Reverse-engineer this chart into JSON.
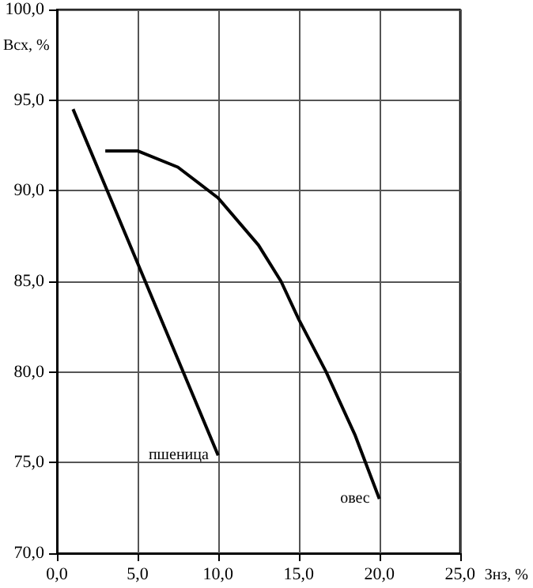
{
  "chart_data": {
    "type": "line",
    "xlabel": "Знз, %",
    "ylabel": "Всх, %",
    "xlim": [
      0,
      25
    ],
    "xticks": [
      {
        "value": 0,
        "label": "0,0"
      },
      {
        "value": 5,
        "label": "5,0"
      },
      {
        "value": 10,
        "label": "10,0"
      },
      {
        "value": 15,
        "label": "15,0"
      },
      {
        "value": 20,
        "label": "20,0"
      },
      {
        "value": 25,
        "label": "25,0"
      }
    ],
    "ylim": [
      70,
      100
    ],
    "yticks": [
      {
        "value": 70,
        "label": "70,0"
      },
      {
        "value": 75,
        "label": "75,0"
      },
      {
        "value": 80,
        "label": "80,0"
      },
      {
        "value": 85,
        "label": "85,0"
      },
      {
        "value": 90,
        "label": "90,0"
      },
      {
        "value": 95,
        "label": "95,0"
      },
      {
        "value": 100,
        "label": "100,0"
      }
    ],
    "series": [
      {
        "name": "пшеница",
        "color": "#000000",
        "x": [
          1.0,
          10.0
        ],
        "values": [
          94.5,
          75.4
        ]
      },
      {
        "name": "овес",
        "color": "#000000",
        "x": [
          3.0,
          5.0,
          7.5,
          10.0,
          12.5,
          13.9,
          15.0,
          16.7,
          18.5,
          20.0
        ],
        "values": [
          92.2,
          92.2,
          91.3,
          89.6,
          87.0,
          85.0,
          82.9,
          80.0,
          76.5,
          73.0
        ]
      }
    ],
    "grid": true,
    "legend": false,
    "marker": "none",
    "line_style": "solid"
  }
}
